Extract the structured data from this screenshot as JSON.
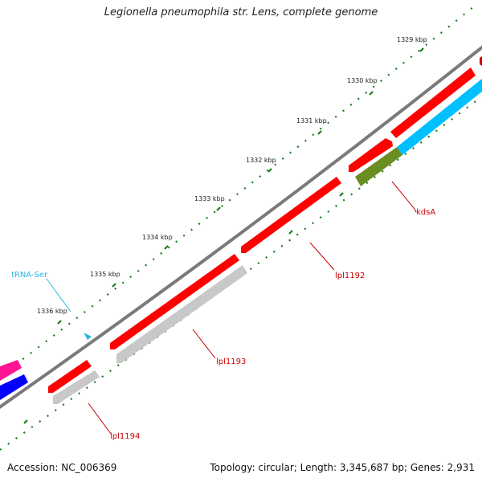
{
  "title": "Legionella pneumophila str. Lens, complete genome",
  "accession": "Accession: NC_006369",
  "summary": "Topology: circular; Length: 3,345,687 bp; Genes: 2,931",
  "kbp_labels": [
    "1329 kbp",
    "1330 kbp",
    "1331 kbp",
    "1332 kbp",
    "1333 kbp",
    "1334 kbp",
    "1335 kbp",
    "1336 kbp"
  ],
  "gene_labels": {
    "kdsA": "kdsA",
    "lpl1192": "lpl1192",
    "lpl1193": "lpl1193",
    "lpl1194": "lpl1194",
    "trna_ser": "tRNA-Ser"
  },
  "colors": {
    "backbone": "#7a7a7a",
    "forward_cds": "#ff0000",
    "reverse_cds": "#c8c8c8",
    "cog_cyan": "#00bfff",
    "cog_olive": "#6b8e23",
    "cog_magenta": "#ff1493",
    "cog_blue": "#0000ff",
    "trna": "#29b6e6",
    "ticks": "#1a7a1a",
    "gene_label_red": "#cc0000"
  }
}
